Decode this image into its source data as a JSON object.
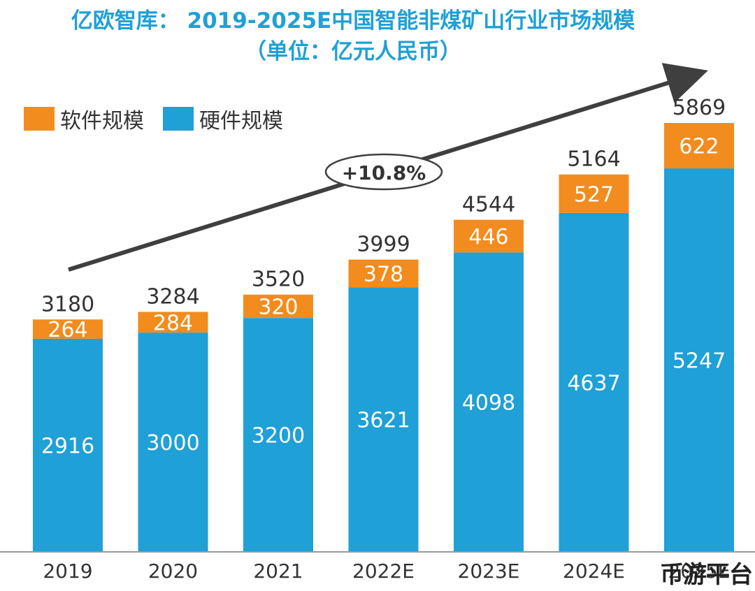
{
  "title_line1": "亿欧智库： 2019-2025E中国智能非煤矿山行业市场规模",
  "title_line2": "（单位：亿元人民币）",
  "growth_label": "+10.8%",
  "watermark": "币游平台",
  "colors": {
    "software": "#f28c1e",
    "hardware": "#1fa0d6",
    "title": "#1fa0d6",
    "arrow": "#3f3f3f"
  },
  "chart_data": {
    "type": "bar",
    "stacked": true,
    "categories": [
      "2019",
      "2020",
      "2021",
      "2022E",
      "2023E",
      "2024E",
      "2025E"
    ],
    "series": [
      {
        "name": "硬件规模",
        "values": [
          2916,
          3000,
          3200,
          3621,
          4098,
          4637,
          5247
        ]
      },
      {
        "name": "软件规模",
        "values": [
          264,
          284,
          320,
          378,
          446,
          527,
          622
        ]
      }
    ],
    "totals": [
      3180,
      3284,
      3520,
      3999,
      4544,
      5164,
      5869
    ],
    "legend": [
      {
        "name": "软件规模",
        "color": "#f28c1e"
      },
      {
        "name": "硬件规模",
        "color": "#1fa0d6"
      }
    ],
    "legend_position": "top-left",
    "ylim": [
      0,
      6200
    ],
    "grid": false,
    "xlabel": "",
    "ylabel": ""
  }
}
